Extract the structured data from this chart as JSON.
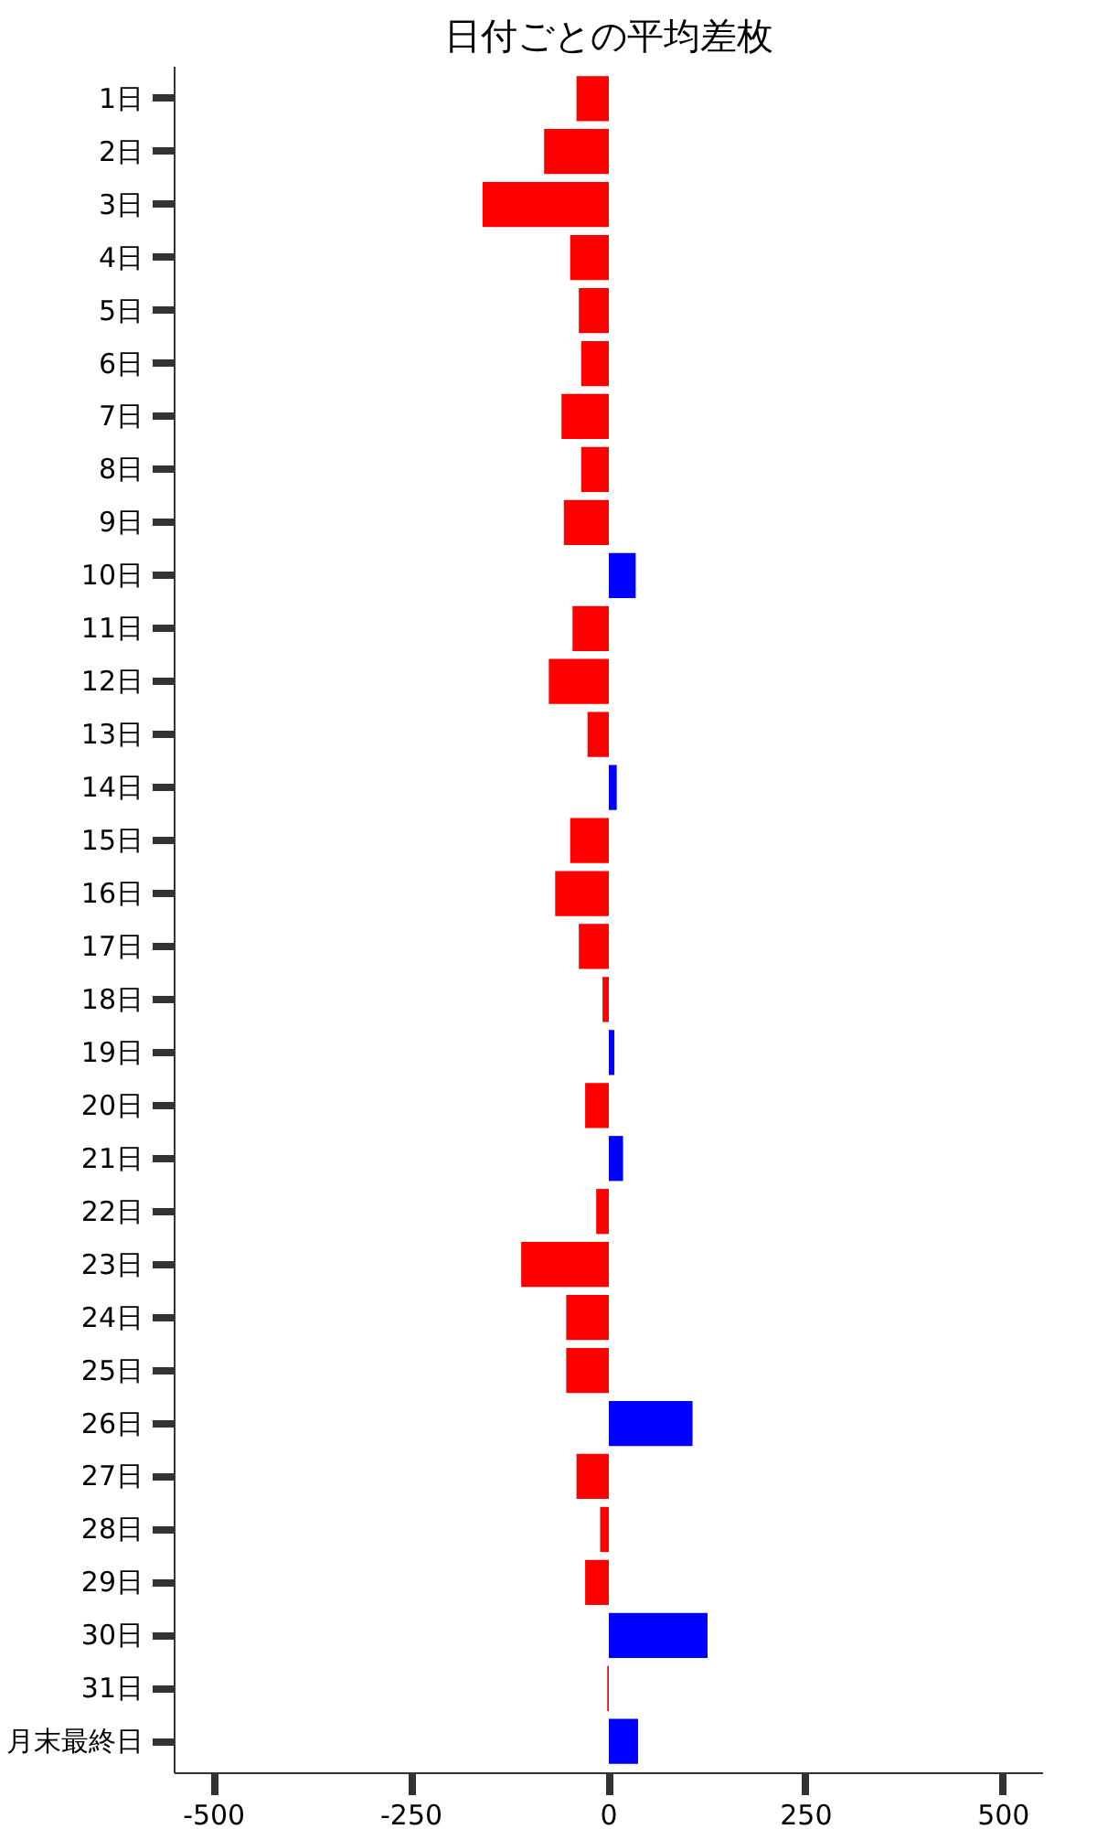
{
  "chart_data": {
    "type": "bar",
    "orientation": "horizontal",
    "title": "日付ごとの平均差枚",
    "categories": [
      "1日",
      "2日",
      "3日",
      "4日",
      "5日",
      "6日",
      "7日",
      "8日",
      "9日",
      "10日",
      "11日",
      "12日",
      "13日",
      "14日",
      "15日",
      "16日",
      "17日",
      "18日",
      "19日",
      "20日",
      "21日",
      "22日",
      "23日",
      "24日",
      "25日",
      "26日",
      "27日",
      "28日",
      "29日",
      "30日",
      "31日",
      "月末最終日"
    ],
    "values": [
      -41,
      -82,
      -160,
      -49,
      -38,
      -35,
      -60,
      -35,
      -57,
      34,
      -46,
      -76,
      -27,
      10,
      -49,
      -68,
      -38,
      -8,
      7,
      -30,
      18,
      -16,
      -111,
      -54,
      -54,
      106,
      -41,
      -11,
      -30,
      125,
      -2,
      37
    ],
    "colors": [
      "#ff0000",
      "#ff0000",
      "#ff0000",
      "#ff0000",
      "#ff0000",
      "#ff0000",
      "#ff0000",
      "#ff0000",
      "#ff0000",
      "#0000ff",
      "#ff0000",
      "#ff0000",
      "#ff0000",
      "#0000ff",
      "#ff0000",
      "#ff0000",
      "#ff0000",
      "#ff0000",
      "#0000ff",
      "#ff0000",
      "#0000ff",
      "#ff0000",
      "#ff0000",
      "#ff0000",
      "#ff0000",
      "#0000ff",
      "#ff0000",
      "#ff0000",
      "#ff0000",
      "#0000ff",
      "#ff0000",
      "#0000ff"
    ],
    "xlim": [
      -550,
      550
    ],
    "xticks": [
      -500,
      -250,
      0,
      250,
      500
    ],
    "grid": false
  }
}
